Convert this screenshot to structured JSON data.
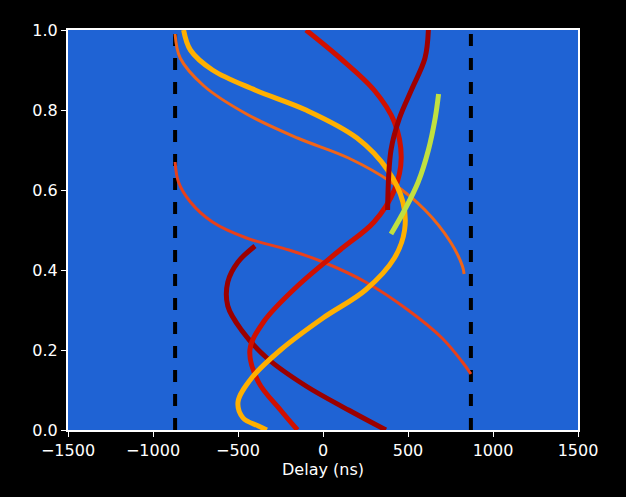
{
  "chart_data": {
    "type": "line",
    "x_label": "Delay (ns)",
    "xlim": [
      -1500,
      1500
    ],
    "ylim": [
      0,
      1
    ],
    "xticks": [
      {
        "value": -1500,
        "label": "−1500"
      },
      {
        "value": -1000,
        "label": "−1000"
      },
      {
        "value": -500,
        "label": "−500"
      },
      0,
      500,
      1000,
      1500
    ],
    "yticks": [
      {
        "value": 0,
        "label": "0.0"
      },
      0.2,
      0.4,
      0.6,
      0.8,
      {
        "value": 1,
        "label": "1.0"
      }
    ],
    "grid": false,
    "series": [
      {
        "color": "#000000",
        "line_style": "dashed",
        "x": [
          -870,
          -870
        ],
        "values": [
          0,
          1
        ]
      },
      {
        "color": "#000000",
        "line_style": "dashed",
        "x": [
          870,
          870
        ],
        "values": [
          0,
          1
        ]
      },
      {
        "color": "#e8401a",
        "line_style": "thin",
        "x": [
          -870,
          -850,
          -780,
          -650,
          -450,
          -200,
          0,
          250,
          500,
          700,
          820,
          870
        ],
        "values": [
          0.67,
          0.62,
          0.57,
          0.52,
          0.48,
          0.45,
          0.42,
          0.37,
          0.3,
          0.23,
          0.17,
          0.14
        ]
      },
      {
        "color": "#f06418",
        "line_style": "thin",
        "x": [
          -870,
          -840,
          -700,
          -450,
          -150,
          150,
          400,
          600,
          750,
          820,
          830
        ],
        "values": [
          0.99,
          0.93,
          0.86,
          0.79,
          0.73,
          0.68,
          0.62,
          0.55,
          0.47,
          0.41,
          0.39
        ]
      },
      {
        "color": "#9b0000",
        "line_style": "solid",
        "x": [
          -400,
          -500,
          -560,
          -560,
          -480,
          -330,
          -100,
          150,
          370
        ],
        "values": [
          0.46,
          0.42,
          0.37,
          0.31,
          0.25,
          0.18,
          0.11,
          0.05,
          0.0
        ]
      },
      {
        "color": "#d01000",
        "line_style": "solid",
        "x": [
          -100,
          100,
          300,
          420,
          460,
          420,
          300,
          100,
          -150,
          -350,
          -430,
          -380,
          -250,
          -150
        ],
        "values": [
          1.0,
          0.93,
          0.85,
          0.77,
          0.68,
          0.6,
          0.52,
          0.45,
          0.36,
          0.27,
          0.2,
          0.12,
          0.05,
          0.0
        ]
      },
      {
        "color": "#ffb000",
        "line_style": "solid",
        "x": [
          -820,
          -780,
          -650,
          -400,
          -100,
          200,
          380,
          470,
          480,
          420,
          250,
          0,
          -250,
          -420,
          -500,
          -470,
          -380,
          -330
        ],
        "values": [
          1.0,
          0.95,
          0.9,
          0.85,
          0.8,
          0.73,
          0.65,
          0.57,
          0.5,
          0.43,
          0.35,
          0.28,
          0.2,
          0.13,
          0.07,
          0.03,
          0.01,
          0.0
        ]
      },
      {
        "color": "#a00000",
        "line_style": "solid",
        "x": [
          620,
          600,
          520,
          450,
          400,
          380
        ],
        "values": [
          1.0,
          0.93,
          0.85,
          0.78,
          0.7,
          0.55
        ]
      },
      {
        "color": "#c0e040",
        "line_style": "solid",
        "x": [
          400,
          480,
          560,
          620,
          660,
          680
        ],
        "values": [
          0.49,
          0.55,
          0.62,
          0.7,
          0.78,
          0.84
        ]
      }
    ]
  }
}
